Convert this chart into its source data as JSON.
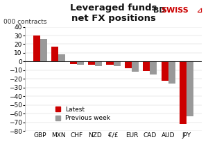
{
  "categories": [
    "GBP",
    "MXN",
    "CHF",
    "NZD",
    "€/£",
    "EUR",
    "CAD",
    "AUD",
    "JPY"
  ],
  "latest": [
    30,
    17,
    -3,
    -4,
    -4,
    -8,
    -11,
    -22,
    -72
  ],
  "previous_week": [
    26,
    8,
    -4,
    -5,
    -5,
    -12,
    -15,
    -25,
    -63
  ],
  "bar_color_latest": "#cc0000",
  "bar_color_prev": "#999999",
  "title_line1": "Leveraged funds",
  "title_line2": "net FX positions",
  "ylabel": "000 contracts",
  "ylim": [
    -80,
    40
  ],
  "yticks": [
    -80,
    -70,
    -60,
    -50,
    -40,
    -30,
    -20,
    -10,
    0,
    10,
    20,
    30,
    40
  ],
  "legend_latest": "Latest",
  "legend_prev": "Previous week",
  "bg_color": "#ffffff",
  "bd_color": "#222222",
  "swiss_color": "#cc0000",
  "title_fontsize": 9.5,
  "label_fontsize": 6.5,
  "tick_fontsize": 6.5,
  "bar_width": 0.38
}
